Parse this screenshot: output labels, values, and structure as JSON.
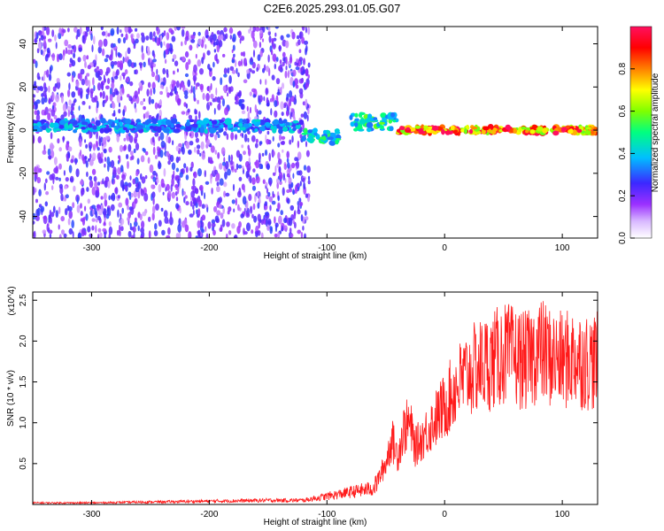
{
  "figure_title": "C2E6.2025.293.01.05.G07",
  "chart_data": [
    {
      "type": "heatmap",
      "name": "spectrogram",
      "xlabel": "Height of straight line (km)",
      "ylabel": "Frequency (Hz)",
      "xlim": [
        -350,
        130
      ],
      "ylim": [
        -50,
        48
      ],
      "xticks": [
        -300,
        -200,
        -100,
        0,
        100
      ],
      "yticks": [
        -40,
        -20,
        0,
        20,
        40
      ],
      "colorbar": {
        "label": "Normalized spectral amplitude",
        "range": [
          0,
          1
        ],
        "ticks": [
          0.0,
          0.2,
          0.4,
          0.6,
          0.8
        ],
        "tick_labels": [
          "0.0",
          "0.2",
          "0.4",
          "0.6",
          "0.8"
        ],
        "colors": [
          "#ffffff",
          "#9b30ff",
          "#3c28ff",
          "#00bfff",
          "#00ff80",
          "#7fff00",
          "#ffff00",
          "#ff8000",
          "#ff0000",
          "#ff1060"
        ]
      },
      "bands": [
        {
          "x_start": -350,
          "x_end": -120,
          "center_hz": 2,
          "width_hz": 5,
          "amplitude": 0.35
        },
        {
          "x_start": -120,
          "x_end": -90,
          "center_hz": -3,
          "width_hz": 6,
          "amplitude": 0.45
        },
        {
          "x_start": -80,
          "x_end": -40,
          "center_hz": 4,
          "width_hz": 8,
          "amplitude": 0.5
        },
        {
          "x_start": -40,
          "x_end": 130,
          "center_hz": 0,
          "width_hz": 3,
          "amplitude": 0.95
        }
      ],
      "noise_region": {
        "x_start": -350,
        "x_end": -115,
        "freq_range": [
          -50,
          48
        ],
        "amplitude": 0.15
      }
    },
    {
      "type": "line",
      "name": "snr",
      "xlabel": "Height of straight line (km)",
      "ylabel": "SNR (10 * v/v)",
      "y_multiplier": "(x10^4)",
      "xlim": [
        -350,
        130
      ],
      "ylim": [
        0,
        2.6
      ],
      "xticks": [
        -300,
        -200,
        -100,
        0,
        100
      ],
      "yticks": [
        0.5,
        1.0,
        1.5,
        2.0,
        2.5
      ],
      "ytick_labels": [
        "0.5",
        "1.0",
        "1.5",
        "2.0",
        "2.5"
      ],
      "color": "#ff1a1a",
      "series": [
        {
          "name": "SNR",
          "x": [
            -350,
            -300,
            -250,
            -200,
            -150,
            -120,
            -100,
            -80,
            -60,
            -50,
            -45,
            -40,
            -35,
            -30,
            -25,
            -20,
            -10,
            0,
            10,
            20,
            30,
            40,
            50,
            60,
            70,
            80,
            90,
            100,
            110,
            120,
            130
          ],
          "y": [
            0.02,
            0.02,
            0.03,
            0.04,
            0.05,
            0.05,
            0.1,
            0.15,
            0.2,
            0.5,
            0.8,
            0.6,
            0.9,
            1.0,
            0.7,
            0.8,
            1.0,
            1.2,
            1.45,
            1.6,
            1.7,
            1.75,
            1.85,
            1.8,
            1.75,
            1.9,
            1.8,
            1.75,
            1.8,
            1.75,
            1.75
          ]
        }
      ]
    }
  ]
}
